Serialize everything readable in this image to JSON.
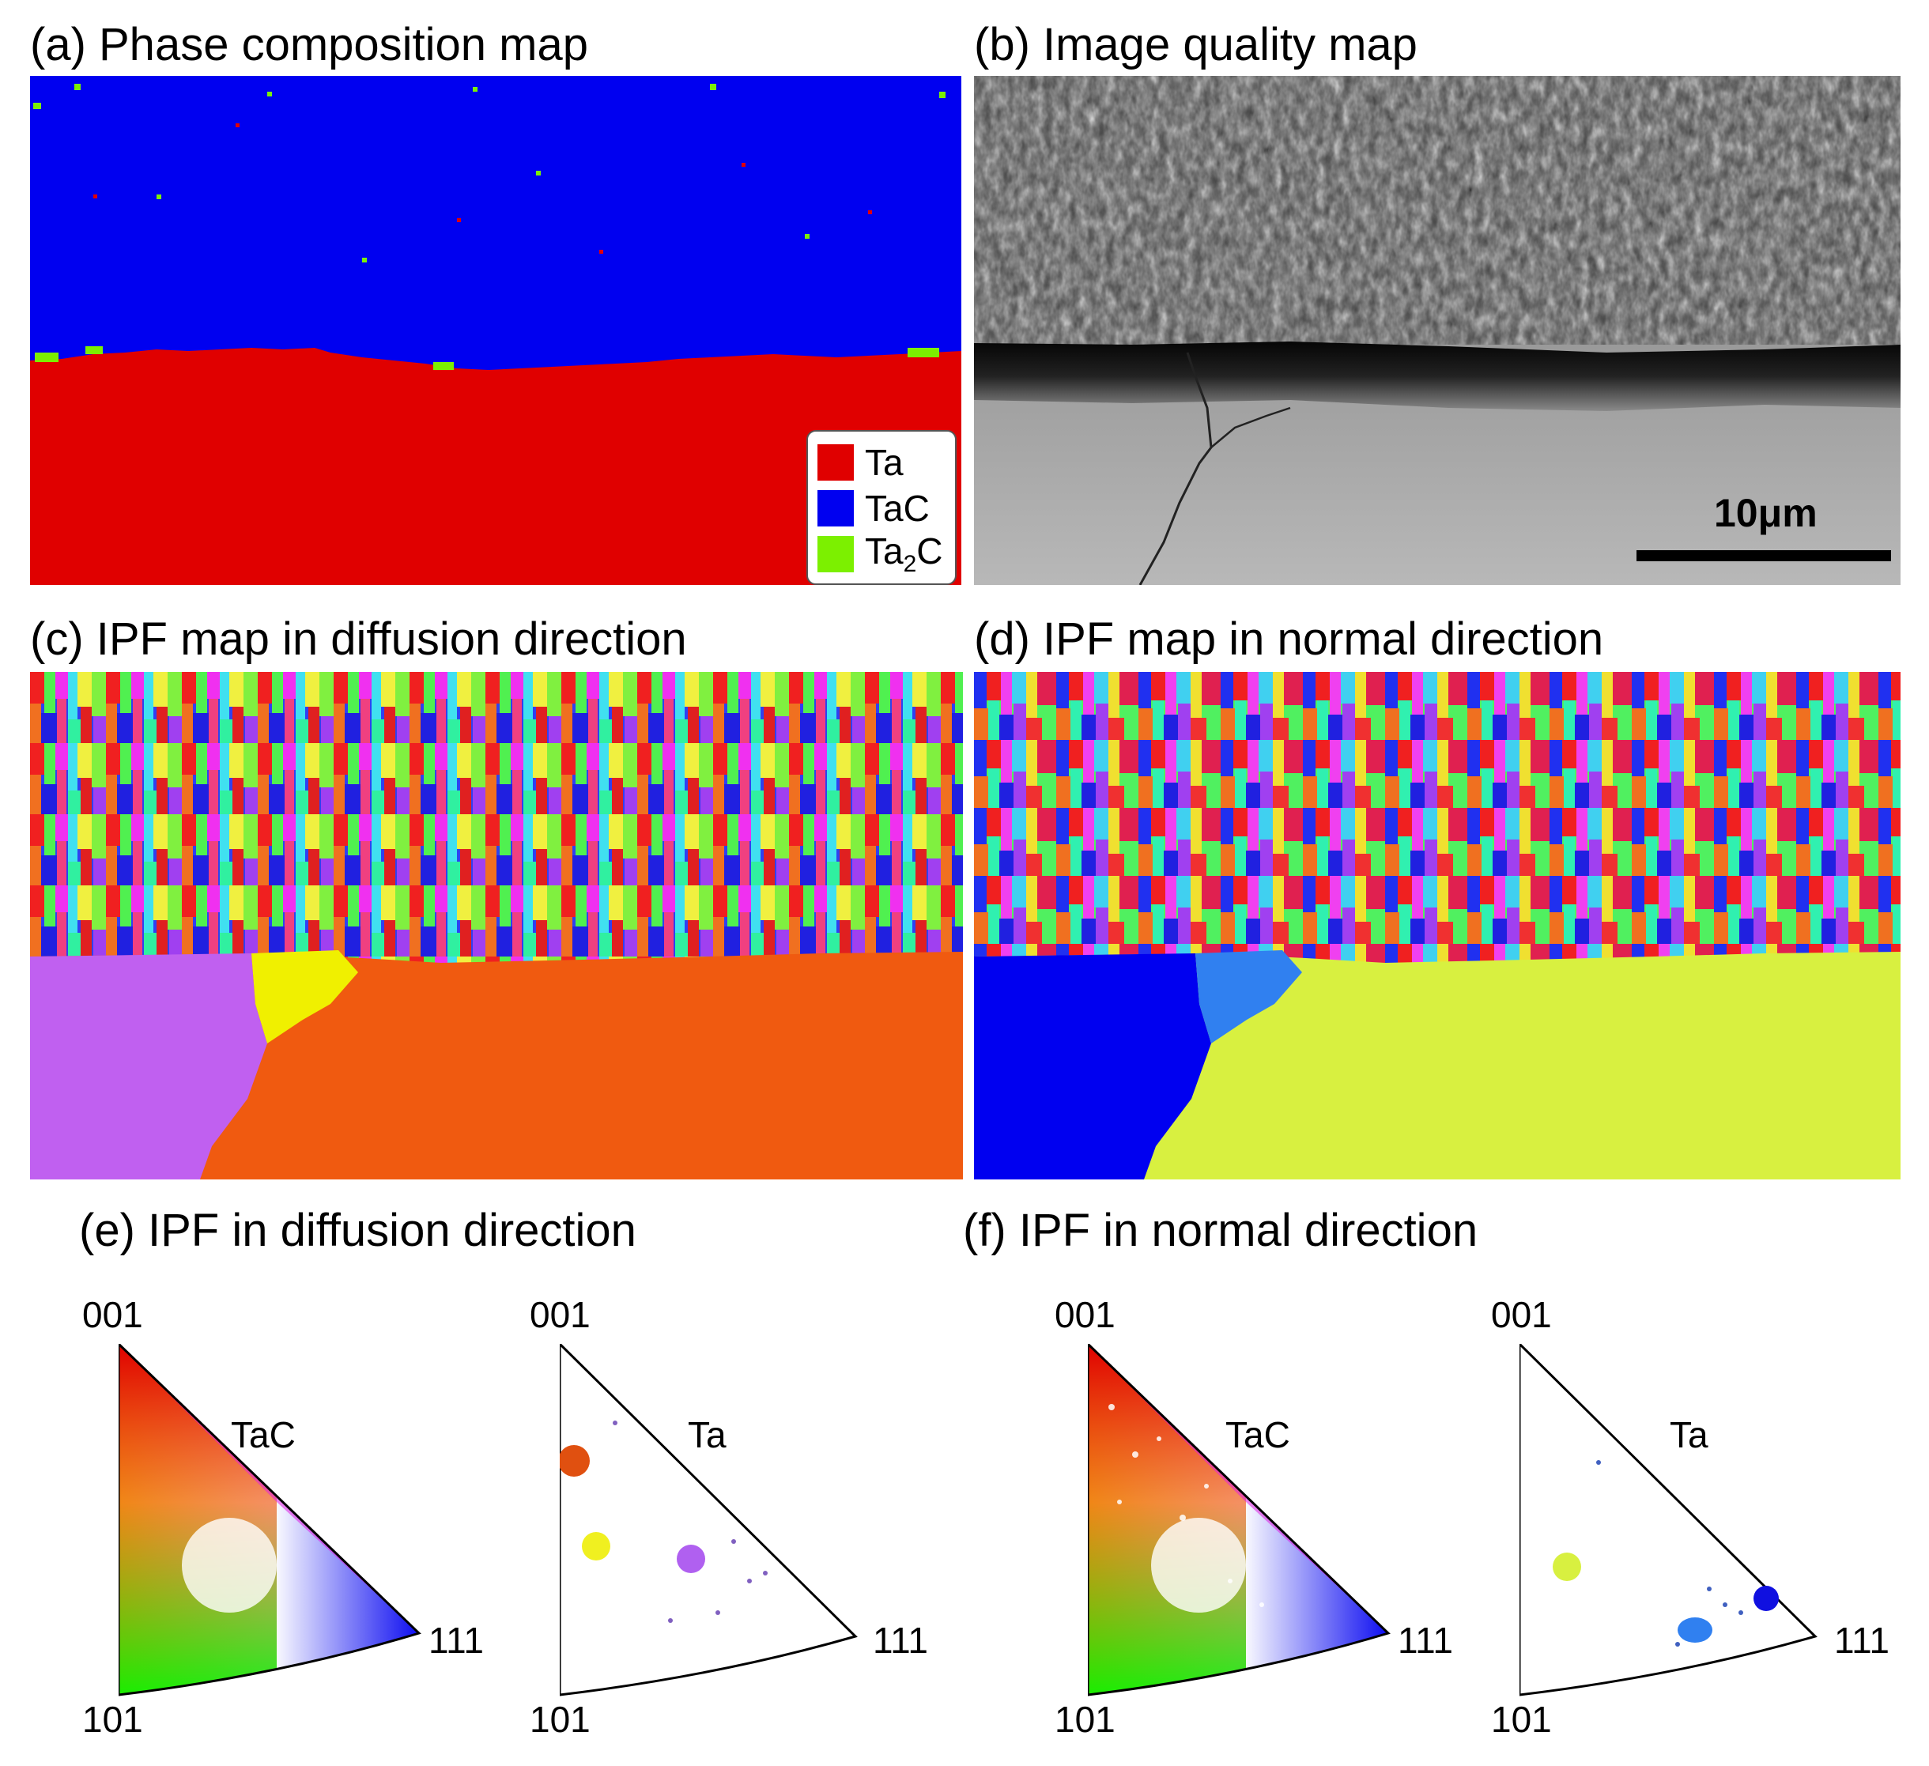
{
  "panels": {
    "a": {
      "title": "(a)  Phase composition map",
      "legend": [
        {
          "label": "Ta",
          "color": "#e00000"
        },
        {
          "label": "TaC",
          "color": "#0000f0"
        },
        {
          "label_base": "Ta",
          "label_sub": "2",
          "label_tail": "C",
          "color": "#7cf000"
        }
      ]
    },
    "b": {
      "title": "(b)  Image quality map",
      "scale_bar": "10μm"
    },
    "c": {
      "title": "(c)  IPF map in diffusion direction"
    },
    "d": {
      "title": "(d)  IPF map in normal direction"
    },
    "e": {
      "title": "(e)  IPF in diffusion direction"
    },
    "f": {
      "title": "(f)  IPF in normal direction"
    }
  },
  "ipf_plots": [
    {
      "id": "e-tac",
      "phase": "TaC",
      "corner_001": "001",
      "corner_101": "101",
      "corner_111": "111",
      "style": "colormap"
    },
    {
      "id": "e-ta",
      "phase": "Ta",
      "corner_001": "001",
      "corner_101": "101",
      "corner_111": "111",
      "style": "points",
      "clusters": [
        {
          "color": "#e05010"
        },
        {
          "color": "#f0f020"
        },
        {
          "color": "#b060f0"
        }
      ]
    },
    {
      "id": "f-tac",
      "phase": "TaC",
      "corner_001": "001",
      "corner_101": "101",
      "corner_111": "111",
      "style": "colormap"
    },
    {
      "id": "f-ta",
      "phase": "Ta",
      "corner_001": "001",
      "corner_101": "101",
      "corner_111": "111",
      "style": "points",
      "clusters": [
        {
          "color": "#d8f040"
        },
        {
          "color": "#3080f0"
        },
        {
          "color": "#1010e0"
        }
      ]
    }
  ],
  "colors": {
    "ta_red": "#e00000",
    "tac_blue": "#0000f0",
    "ta2c_green": "#7cf000",
    "grain_c_left": "#c060f0",
    "grain_c_mid": "#f0f000",
    "grain_c_right": "#f05a10",
    "grain_d_left": "#0000f0",
    "grain_d_mid": "#3080f0",
    "grain_d_right": "#d8f040"
  }
}
